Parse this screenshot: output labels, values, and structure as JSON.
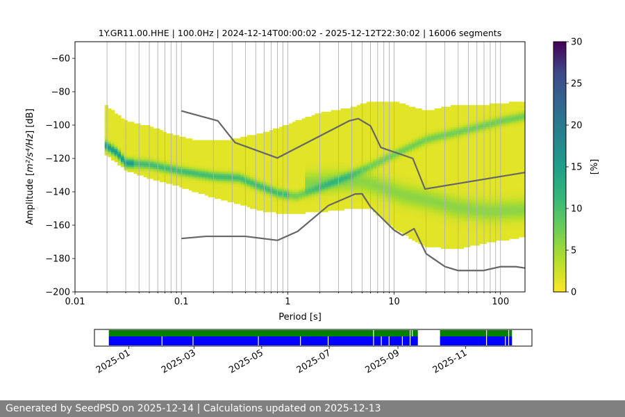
{
  "chart_data": [
    {
      "type": "heatmap",
      "title": "1Y.GR11.00.HHE | 100.0Hz | 2024-12-14T00:00:02 - 2025-12-12T22:30:02 | 16006 segments",
      "xlabel": "Period [s]",
      "ylabel_prefix": "Amplitude [",
      "ylabel_unit": "m²/s⁴/Hz",
      "ylabel_suffix": "] [dB]",
      "xscale": "log",
      "xlim": [
        0.01,
        170
      ],
      "ylim": [
        -200,
        -50
      ],
      "x_ticks": [
        0.01,
        0.1,
        1,
        10,
        100
      ],
      "x_tick_labels": [
        "0.01",
        "0.1",
        "1",
        "10",
        "100"
      ],
      "y_ticks": [
        -200,
        -180,
        -160,
        -140,
        -120,
        -100,
        -80,
        -60
      ],
      "y_tick_labels": [
        "−200",
        "−180",
        "−160",
        "−140",
        "−120",
        "−100",
        "−80",
        "−60"
      ],
      "grid": "vertical lines at periods",
      "colormap": "viridis",
      "colorbar": {
        "label": "[%]",
        "range": [
          0,
          30
        ],
        "ticks": [
          0,
          5,
          10,
          15,
          20,
          25,
          30
        ],
        "tick_labels": [
          "0",
          "5",
          "10",
          "15",
          "20",
          "25",
          "30"
        ]
      },
      "psd_envelope": {
        "period": [
          0.019,
          0.03,
          0.05,
          0.08,
          0.15,
          0.3,
          0.6,
          1,
          2,
          4,
          6,
          10,
          20,
          40,
          80,
          170
        ],
        "upper_db": [
          -88,
          -98,
          -101,
          -106,
          -110,
          -109,
          -105,
          -100,
          -93,
          -90,
          -86,
          -86,
          -92,
          -88,
          -88,
          -86
        ],
        "lower_db": [
          -117,
          -127,
          -132,
          -135,
          -141,
          -146,
          -152,
          -153,
          -152,
          -150,
          -150,
          -162,
          -173,
          -174,
          -170,
          -167
        ]
      },
      "psd_mode": {
        "period": [
          0.019,
          0.025,
          0.03,
          0.05,
          0.1,
          0.2,
          0.35,
          0.5,
          0.8,
          1.2,
          2,
          4,
          6,
          10,
          20,
          50,
          100,
          170
        ],
        "db": [
          -112,
          -117,
          -123,
          -124,
          -128,
          -131,
          -132,
          -136,
          -141,
          -143,
          -138,
          -130,
          -125,
          -118,
          -109,
          -103,
          -98,
          -95
        ]
      },
      "psd_mode_secondary": {
        "period": [
          1.5,
          3,
          5,
          8,
          12,
          20,
          40,
          80,
          170
        ],
        "db": [
          -135,
          -134,
          -134,
          -138,
          -142,
          -145,
          -150,
          -152,
          -151
        ]
      },
      "series": [
        {
          "name": "",
          "x": [
            0.1,
            0.22,
            0.32,
            0.8,
            3.8,
            4.6,
            6.0,
            7.5,
            15,
            19.5,
            170
          ],
          "values": [
            -91.5,
            -97.4,
            -110.5,
            -119.7,
            -97.4,
            -96.1,
            -100.5,
            -113.4,
            -120.0,
            -138.3,
            -128.4
          ]
        },
        {
          "name": "",
          "x": [
            0.1,
            0.17,
            0.4,
            0.8,
            1.24,
            2.4,
            4.3,
            5.0,
            6.0,
            10,
            12,
            15.4,
            20,
            30,
            40,
            69,
            100,
            140,
            170
          ],
          "values": [
            -168.0,
            -166.7,
            -166.7,
            -169.1,
            -163.7,
            -148.3,
            -141.3,
            -141.2,
            -149.0,
            -163.0,
            -166.1,
            -162.1,
            -177.1,
            -184.8,
            -187.2,
            -187.2,
            -184.9,
            -184.9,
            -185.7
          ]
        }
      ]
    },
    {
      "type": "timeline",
      "date_start": "2024-12-01",
      "date_end": "2025-12-31",
      "x_tick_labels": [
        "2025-01",
        "2025-03",
        "2025-05",
        "2025-07",
        "2025-09",
        "2025-11"
      ],
      "x_tick_dates": [
        "2025-01-01",
        "2025-03-01",
        "2025-05-01",
        "2025-07-01",
        "2025-09-01",
        "2025-11-01"
      ],
      "colors": {
        "upper": "#008000",
        "lower": "#0000ff"
      },
      "upper_available": [
        [
          "2024-12-14",
          "2025-09-19"
        ],
        [
          "2025-10-09",
          "2025-12-13"
        ]
      ],
      "lower_available": [
        [
          "2024-12-14",
          "2025-09-19"
        ],
        [
          "2025-10-09",
          "2025-12-13"
        ]
      ],
      "upper_gaps": [
        "2025-08-10",
        "2025-09-12",
        "2025-09-14",
        "2025-11-20",
        "2025-12-10"
      ],
      "lower_gaps": [
        "2025-01-31",
        "2025-02-28",
        "2025-04-28",
        "2025-06-05",
        "2025-06-30",
        "2025-08-10",
        "2025-08-17",
        "2025-08-24",
        "2025-09-05",
        "2025-09-12",
        "2025-11-20",
        "2025-12-07",
        "2025-12-10"
      ]
    }
  ],
  "footer": {
    "text": "Generated by SeedPSD on 2025-12-14 | Calculations updated on 2025-12-13"
  }
}
